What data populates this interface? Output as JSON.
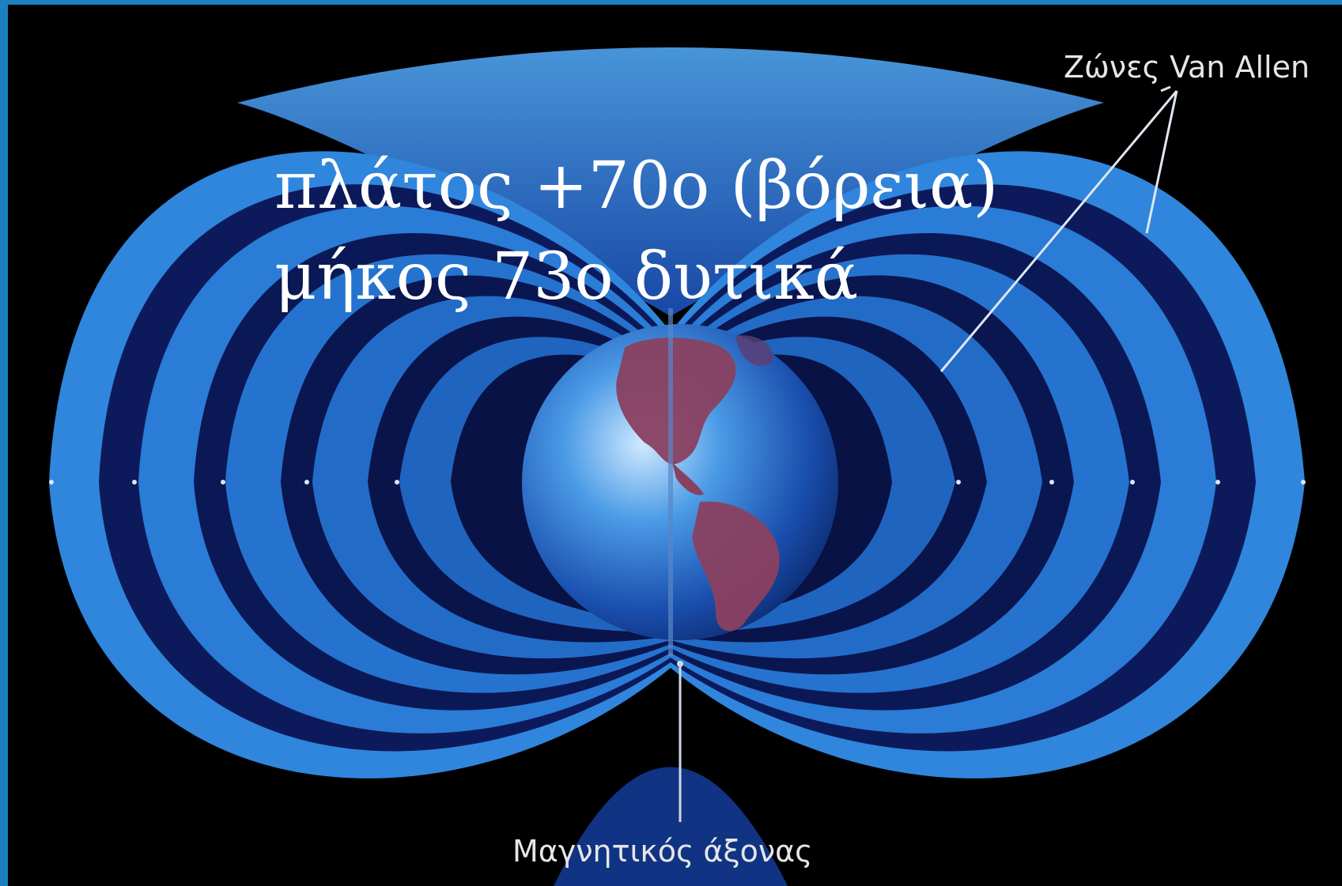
{
  "heading": {
    "latitude": "πλάτος +70ο (βόρεια)",
    "longitude": "μήκος 73ο δυτικά"
  },
  "labels": {
    "van_allen_belts": "Ζώνες Van Allen",
    "magnetic_axis": "Μαγνητικός άξονας"
  },
  "colors": {
    "frame": "#1b7fc0",
    "background": "#000000",
    "belt_glow": "#3a8de0",
    "belt_dark": "#0b1450",
    "continents": "#8a4060",
    "text": "#ffffff"
  }
}
